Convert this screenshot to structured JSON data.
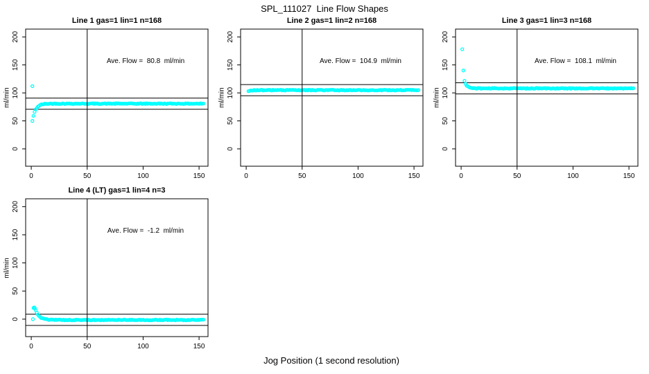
{
  "chart_data": {
    "type": "scatter",
    "title": "SPL_111027  Line Flow Shapes",
    "xlabel": "Jog Position (1 second resolution)",
    "marker_color": "#00FFFF",
    "axis_color": "#000000",
    "grid": false,
    "layout": "2 rows x 3 cols, positions: top-left, top-center, top-right, bottom-left",
    "x_ticks": [
      0,
      50,
      100,
      150
    ],
    "y_ticks": [
      0,
      50,
      100,
      150,
      200
    ],
    "xlim": [
      -5,
      158
    ],
    "ylim": [
      -31,
      214
    ],
    "subplots": [
      {
        "title": "Line 1 gas=1 lin=1 n=168",
        "ylabel": "ml/min",
        "annotation": "Ave. Flow =  80.8  ml/min",
        "ave_flow": 80.8,
        "ref_lines_y": [
          90.8,
          70.8
        ],
        "vline_x": 50,
        "series": {
          "model": "y = baseline + amplitude*exp(-(x-x_start)/tau) + noise",
          "x_start": 1,
          "x_end": 154,
          "x_step": 1,
          "baseline": 80.8,
          "amplitude": -31,
          "tau": 2.8,
          "noise": 0.7
        },
        "outliers": [
          [
            1,
            112
          ]
        ]
      },
      {
        "title": "Line 2 gas=1 lin=2 n=168",
        "ylabel": "ml/min",
        "annotation": "Ave. Flow =  104.9  ml/min",
        "ave_flow": 104.9,
        "ref_lines_y": [
          114.9,
          94.9
        ],
        "vline_x": 50,
        "series": {
          "model": "y = baseline + amplitude*exp(-(x-x_start)/tau) + noise",
          "x_start": 2,
          "x_end": 154,
          "x_step": 1,
          "baseline": 104.9,
          "amplitude": -2.5,
          "tau": 1.2,
          "noise": 0.7
        },
        "outliers": []
      },
      {
        "title": "Line 3 gas=1 lin=3 n=168",
        "ylabel": "ml/min",
        "annotation": "Ave. Flow =  108.1  ml/min",
        "ave_flow": 108.1,
        "ref_lines_y": [
          118.1,
          98.1
        ],
        "vline_x": 50,
        "series": {
          "model": "y = baseline + amplitude*exp(-(x-x_start)/tau) + noise",
          "x_start": 3,
          "x_end": 154,
          "x_step": 1,
          "baseline": 108.1,
          "amplitude": 13,
          "tau": 2.2,
          "noise": 0.7
        },
        "outliers": [
          [
            1,
            178
          ],
          [
            2,
            140
          ]
        ]
      },
      {
        "title": "Line 4 (LT) gas=1 lin=4 n=3",
        "ylabel": "ml/min",
        "annotation": "Ave. Flow =  -1.2  ml/min",
        "ave_flow": -1.2,
        "ref_lines_y": [
          8.8,
          -11.2
        ],
        "vline_x": 50,
        "series": {
          "model": "y = baseline + amplitude*exp(-(x-x_start)/tau) + noise",
          "x_start": 3,
          "x_end": 154,
          "x_step": 1,
          "baseline": -1.4,
          "amplitude": 22,
          "tau": 3.5,
          "noise": 0.7
        },
        "outliers": [
          [
            1.5,
            0
          ],
          [
            2,
            20
          ],
          [
            2.6,
            20.8
          ],
          [
            3.2,
            19.3
          ]
        ]
      }
    ]
  }
}
